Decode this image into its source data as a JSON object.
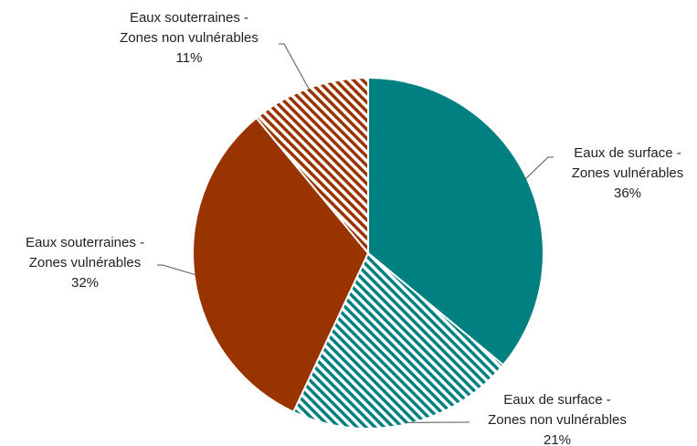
{
  "chart_data": {
    "type": "pie",
    "categories": [
      "Eaux de surface - Zones vulnérables",
      "Eaux de surface - Zones non vulnérables",
      "Eaux souterraines - Zones vulnérables",
      "Eaux souterraines - Zones non vulnérables"
    ],
    "values": [
      36,
      21,
      32,
      11
    ],
    "value_labels": [
      "36%",
      "21%",
      "32%",
      "11%"
    ],
    "colors": [
      "#008080",
      "#008080",
      "#993300",
      "#993300"
    ],
    "hatched": [
      false,
      true,
      false,
      true
    ]
  }
}
